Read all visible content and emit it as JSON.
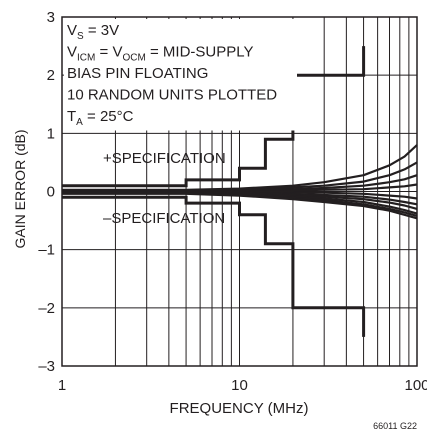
{
  "chart_data": {
    "type": "line",
    "title": "",
    "xlabel": "FREQUENCY (MHz)",
    "ylabel": "GAIN ERROR (dB)",
    "x_scale": "log",
    "xlim": [
      1,
      100
    ],
    "ylim": [
      -3,
      3
    ],
    "grid": true,
    "x_tick_labels": [
      {
        "value": 1,
        "label": "1"
      },
      {
        "value": 10,
        "label": "10"
      },
      {
        "value": 100,
        "label": "100"
      }
    ],
    "y_tick_labels": [
      {
        "value": 3,
        "label": "3"
      },
      {
        "value": 2,
        "label": "2"
      },
      {
        "value": 1,
        "label": "1"
      },
      {
        "value": 0,
        "label": "0"
      },
      {
        "value": -1,
        "label": "–1"
      },
      {
        "value": -2,
        "label": "–2"
      },
      {
        "value": -3,
        "label": "–3"
      }
    ],
    "conditions": [
      {
        "main": "V",
        "sub": "S",
        "rest": " = 3V"
      },
      {
        "main": "V",
        "sub": "ICM",
        "rest": " = V",
        "sub2": "OCM",
        "rest2": " = MID-SUPPLY"
      },
      {
        "main": "BIAS PIN FLOATING"
      },
      {
        "main": "10 RANDOM UNITS PLOTTED"
      },
      {
        "main": "T",
        "sub": "A",
        "rest": " = 25°C"
      }
    ],
    "annotations": {
      "plus_spec": "+SPECIFICATION",
      "minus_spec": "–SPECIFICATION"
    },
    "figure_id": "66011 G22",
    "spec_upper": {
      "x": [
        1,
        5,
        5,
        10,
        10,
        14,
        14,
        20,
        20,
        50,
        50
      ],
      "y": [
        0.1,
        0.1,
        0.2,
        0.2,
        0.4,
        0.4,
        0.9,
        0.9,
        2.0,
        2.0,
        2.5
      ]
    },
    "spec_lower": {
      "x": [
        1,
        5,
        5,
        10,
        10,
        14,
        14,
        20,
        20,
        50,
        50
      ],
      "y": [
        -0.1,
        -0.1,
        -0.2,
        -0.2,
        -0.4,
        -0.4,
        -0.9,
        -0.9,
        -2.0,
        -2.0,
        -2.5
      ]
    },
    "series": [
      {
        "x": [
          1,
          5,
          10,
          20,
          30,
          50,
          70,
          85,
          100
        ],
        "y": [
          0.03,
          0.03,
          0.05,
          0.1,
          0.16,
          0.28,
          0.45,
          0.6,
          0.8
        ]
      },
      {
        "x": [
          1,
          5,
          10,
          20,
          30,
          50,
          70,
          85,
          100
        ],
        "y": [
          0.02,
          0.02,
          0.04,
          0.07,
          0.1,
          0.17,
          0.28,
          0.38,
          0.5
        ]
      },
      {
        "x": [
          1,
          5,
          10,
          20,
          30,
          50,
          70,
          85,
          100
        ],
        "y": [
          0.01,
          0.01,
          0.02,
          0.04,
          0.06,
          0.1,
          0.16,
          0.21,
          0.28
        ]
      },
      {
        "x": [
          1,
          5,
          10,
          20,
          30,
          50,
          70,
          85,
          100
        ],
        "y": [
          0.0,
          0.0,
          0.01,
          0.02,
          0.03,
          0.04,
          0.07,
          0.09,
          0.12
        ]
      },
      {
        "x": [
          1,
          5,
          10,
          20,
          30,
          50,
          70,
          85,
          100
        ],
        "y": [
          0.0,
          0.0,
          0.0,
          -0.01,
          -0.02,
          -0.04,
          -0.07,
          -0.09,
          -0.12
        ]
      },
      {
        "x": [
          1,
          5,
          10,
          20,
          30,
          50,
          70,
          85,
          100
        ],
        "y": [
          -0.01,
          -0.01,
          -0.02,
          -0.04,
          -0.06,
          -0.09,
          -0.14,
          -0.18,
          -0.22
        ]
      },
      {
        "x": [
          1,
          5,
          10,
          20,
          30,
          50,
          70,
          85,
          100
        ],
        "y": [
          -0.02,
          -0.02,
          -0.03,
          -0.06,
          -0.09,
          -0.13,
          -0.19,
          -0.24,
          -0.3
        ]
      },
      {
        "x": [
          1,
          5,
          10,
          20,
          30,
          50,
          70,
          85,
          100
        ],
        "y": [
          -0.03,
          -0.03,
          -0.05,
          -0.08,
          -0.12,
          -0.18,
          -0.26,
          -0.32,
          -0.38
        ]
      },
      {
        "x": [
          1,
          5,
          10,
          20,
          30,
          50,
          70,
          85,
          100
        ],
        "y": [
          -0.03,
          -0.03,
          -0.06,
          -0.11,
          -0.15,
          -0.22,
          -0.3,
          -0.36,
          -0.42
        ]
      },
      {
        "x": [
          1,
          5,
          10,
          20,
          30,
          50,
          70,
          85,
          100
        ],
        "y": [
          -0.04,
          -0.04,
          -0.07,
          -0.13,
          -0.18,
          -0.25,
          -0.33,
          -0.4,
          -0.46
        ]
      }
    ]
  }
}
